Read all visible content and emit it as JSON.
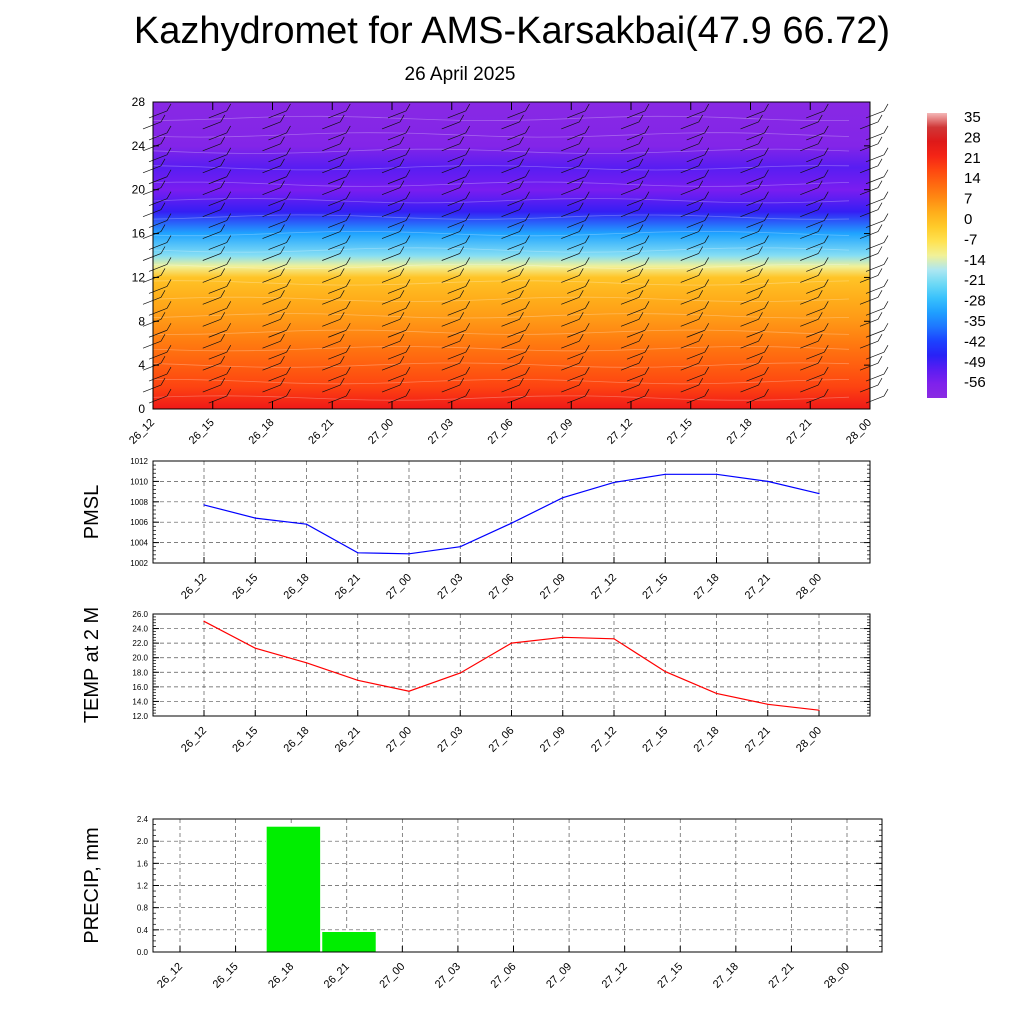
{
  "title": "Kazhydromet for AMS-Karsakbai(47.9 66.72)",
  "subtitle": "26 April 2025",
  "cross_section": {
    "y_ticks": [
      "0",
      "4",
      "8",
      "12",
      "16",
      "20",
      "24",
      "28"
    ],
    "x_ticks": [
      "26_12",
      "26_15",
      "26_18",
      "26_21",
      "27_00",
      "27_03",
      "27_06",
      "27_09",
      "27_12",
      "27_15",
      "27_18",
      "27_21",
      "28_00"
    ],
    "colorbar_labels": [
      "35",
      "28",
      "21",
      "14",
      "7",
      "0",
      "-7",
      "-14",
      "-21",
      "-28",
      "-35",
      "-42",
      "-49",
      "-56"
    ]
  },
  "chart_data": [
    {
      "type": "heatmap",
      "title": "",
      "ylim": [
        0,
        28
      ],
      "x": [
        "26_12",
        "26_15",
        "26_18",
        "26_21",
        "27_00",
        "27_03",
        "27_06",
        "27_09",
        "27_12",
        "27_15",
        "27_18",
        "27_21",
        "28_00"
      ],
      "colorbar": {
        "min": -63,
        "max": 35,
        "labels": [
          35,
          28,
          21,
          14,
          7,
          0,
          -7,
          -14,
          -21,
          -28,
          -35,
          -42,
          -49,
          -56
        ]
      },
      "temperature_profile": [
        {
          "level": 0,
          "value": 22
        },
        {
          "level": 2,
          "value": 16
        },
        {
          "level": 4,
          "value": 12
        },
        {
          "level": 6,
          "value": 8
        },
        {
          "level": 8,
          "value": 4
        },
        {
          "level": 10,
          "value": 1
        },
        {
          "level": 12,
          "value": -3
        },
        {
          "level": 13,
          "value": -14
        },
        {
          "level": 14,
          "value": -22
        },
        {
          "level": 16,
          "value": -33
        },
        {
          "level": 18,
          "value": -50
        },
        {
          "level": 20,
          "value": -56
        },
        {
          "level": 22,
          "value": -53
        },
        {
          "level": 24,
          "value": -60
        },
        {
          "level": 28,
          "value": -62
        }
      ]
    },
    {
      "type": "line",
      "ylabel": "PMSL",
      "ylim": [
        1002,
        1012
      ],
      "y_ticks": [
        "1002",
        "1004",
        "1006",
        "1008",
        "1010",
        "1012"
      ],
      "x": [
        "26_12",
        "26_15",
        "26_18",
        "26_21",
        "27_00",
        "27_03",
        "27_06",
        "27_09",
        "27_12",
        "27_15",
        "27_18",
        "27_21",
        "28_00"
      ],
      "values": [
        1007.7,
        1006.4,
        1005.8,
        1003.0,
        1002.9,
        1003.6,
        1005.9,
        1008.4,
        1009.9,
        1010.7,
        1010.7,
        1010.0,
        1008.8
      ],
      "color": "#0000ff"
    },
    {
      "type": "line",
      "ylabel": "TEMP at 2 M",
      "ylim": [
        12,
        26
      ],
      "y_ticks": [
        "12.0",
        "14.0",
        "16.0",
        "18.0",
        "20.0",
        "22.0",
        "24.0",
        "26.0"
      ],
      "x": [
        "26_12",
        "26_15",
        "26_18",
        "26_21",
        "27_00",
        "27_03",
        "27_06",
        "27_09",
        "27_12",
        "27_15",
        "27_18",
        "27_21",
        "28_00"
      ],
      "values": [
        25.0,
        21.3,
        19.3,
        16.9,
        15.4,
        17.9,
        22.0,
        22.8,
        22.6,
        18.1,
        15.1,
        13.6,
        12.8
      ],
      "color": "#ff0000"
    },
    {
      "type": "bar",
      "ylabel": "PRECIP, mm",
      "ylim": [
        0,
        2.4
      ],
      "y_ticks": [
        "0.0",
        "0.4",
        "0.8",
        "1.2",
        "1.6",
        "2.0",
        "2.4"
      ],
      "categories": [
        "26_12",
        "26_15",
        "26_18",
        "26_21",
        "27_00",
        "27_03",
        "27_06",
        "27_09",
        "27_12",
        "27_15",
        "27_18",
        "27_21",
        "28_00"
      ],
      "values": [
        0,
        0,
        2.27,
        0.37,
        0,
        0,
        0,
        0,
        0,
        0,
        0,
        0,
        0
      ],
      "color": "#00ee00"
    }
  ]
}
